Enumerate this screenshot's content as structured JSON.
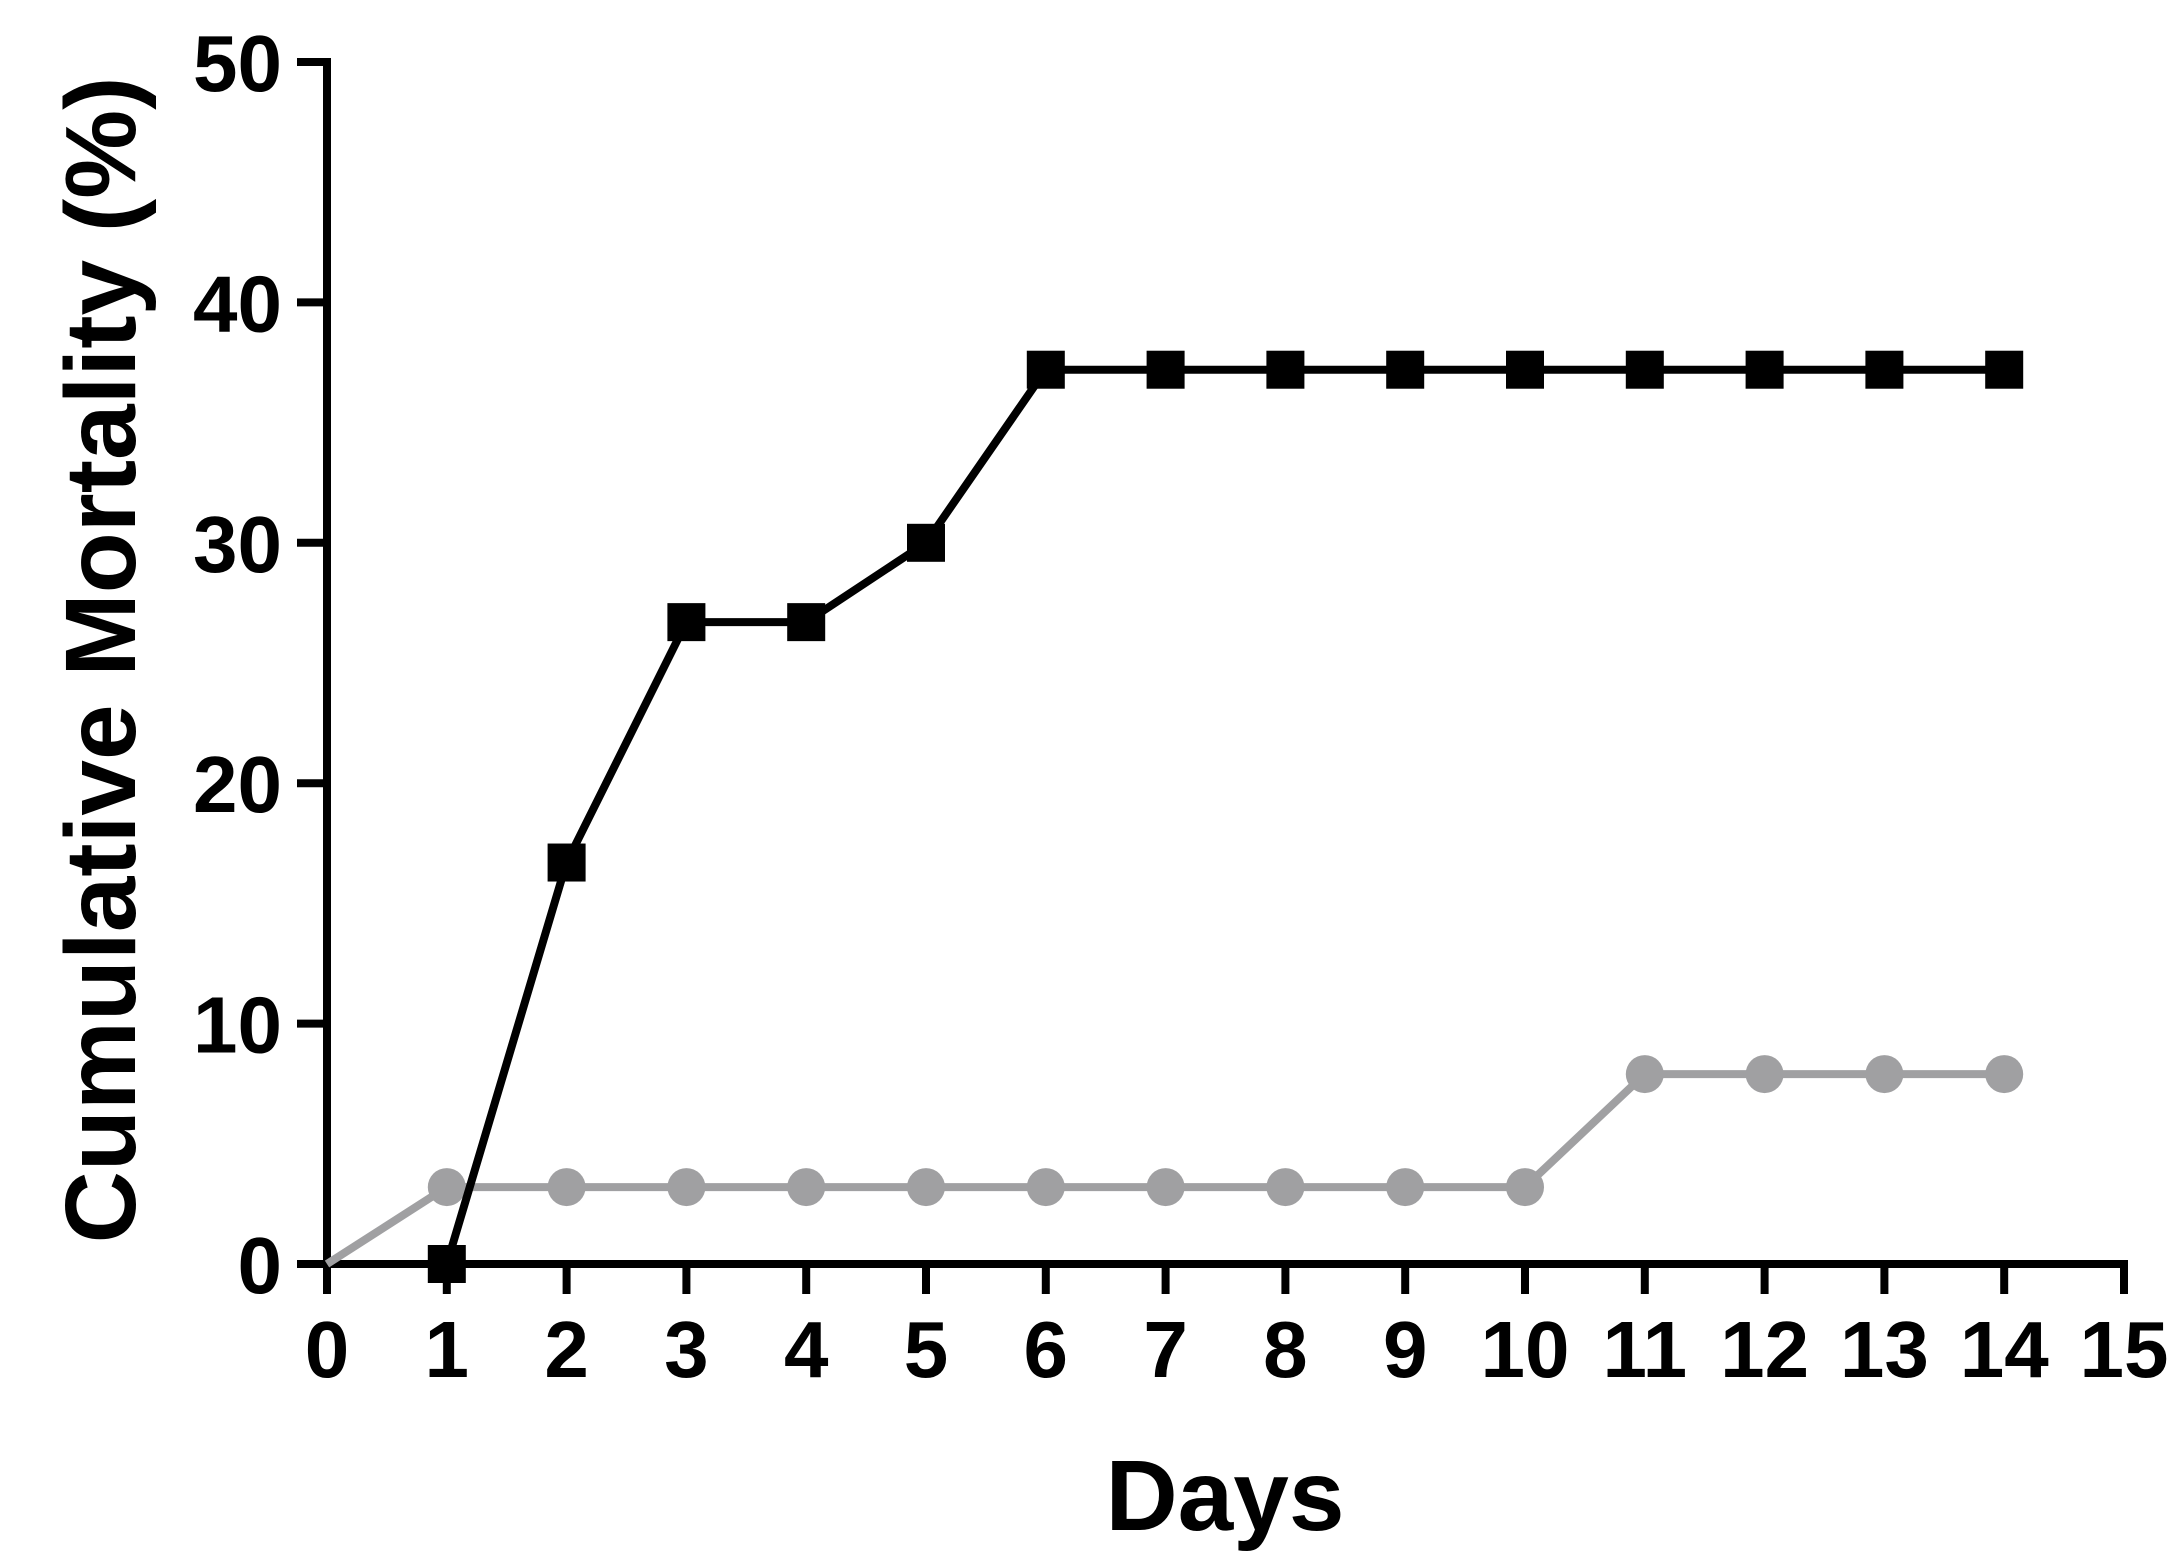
{
  "chart_data": {
    "type": "line",
    "title": "",
    "xlabel": "Days",
    "ylabel": "Cumulative Mortality (%)",
    "xlim": [
      0,
      15
    ],
    "ylim": [
      0,
      50
    ],
    "x_ticks": [
      "0",
      "1",
      "2",
      "3",
      "4",
      "5",
      "6",
      "7",
      "8",
      "9",
      "10",
      "11",
      "12",
      "13",
      "14",
      "15"
    ],
    "y_ticks": [
      "0",
      "10",
      "20",
      "30",
      "40",
      "50"
    ],
    "grid": false,
    "legend": "none",
    "series": [
      {
        "color": "#000000",
        "marker": "square",
        "x": [
          1,
          2,
          3,
          4,
          5,
          6,
          7,
          8,
          9,
          10,
          11,
          12,
          13,
          14
        ],
        "y": [
          0,
          16.7,
          26.7,
          26.7,
          30.0,
          37.2,
          37.2,
          37.2,
          37.2,
          37.2,
          37.2,
          37.2,
          37.2,
          37.2
        ]
      },
      {
        "color": "#a0a0a2",
        "marker": "circle",
        "x": [
          0,
          1,
          2,
          3,
          4,
          5,
          6,
          7,
          8,
          9,
          10,
          11,
          12,
          13,
          14
        ],
        "y": [
          0,
          3.2,
          3.2,
          3.2,
          3.2,
          3.2,
          3.2,
          3.2,
          3.2,
          3.2,
          3.2,
          7.9,
          7.9,
          7.9,
          7.9
        ]
      }
    ]
  }
}
